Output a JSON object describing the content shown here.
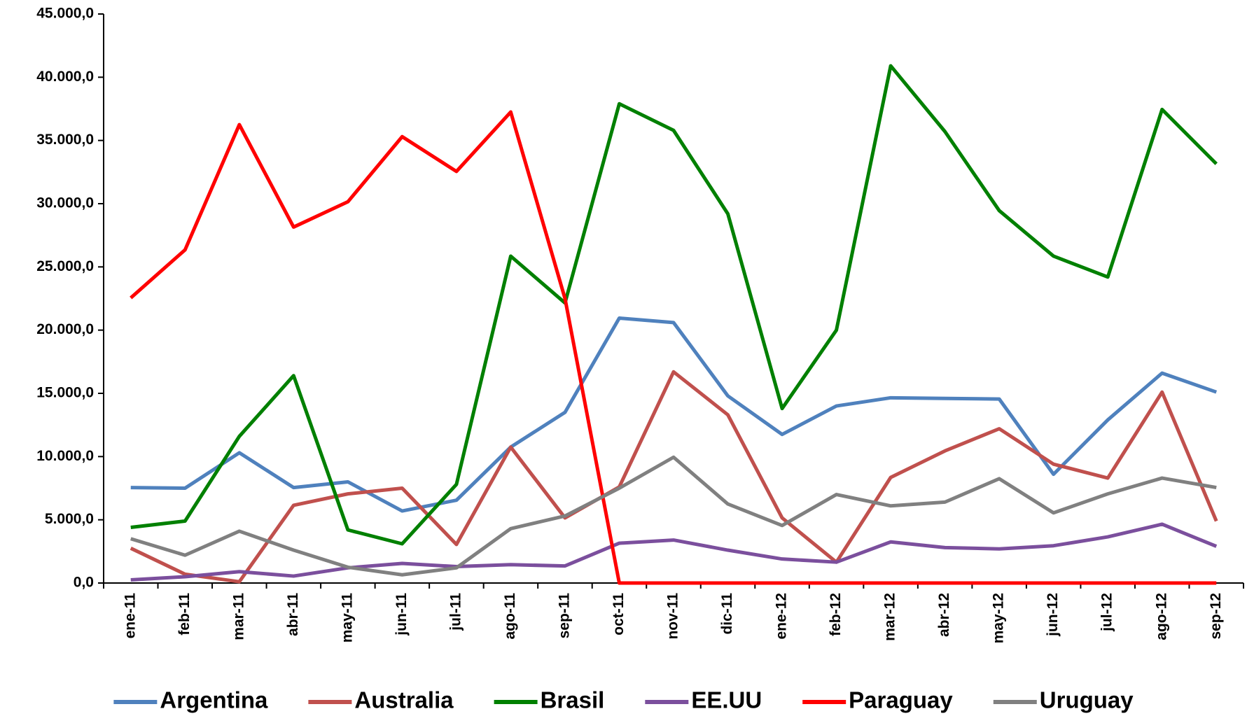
{
  "chart_data": {
    "type": "line",
    "categories": [
      "ene-11",
      "feb-11",
      "mar-11",
      "abr-11",
      "may-11",
      "jun-11",
      "jul-11",
      "ago-11",
      "sep-11",
      "oct-11",
      "nov-11",
      "dic-11",
      "ene-12",
      "feb-12",
      "mar-12",
      "abr-12",
      "may-12",
      "jun-12",
      "jul-12",
      "ago-12",
      "sep-12"
    ],
    "series": [
      {
        "name": "Argentina",
        "color": "#4f81bd",
        "values": [
          7550,
          7500,
          10300,
          7550,
          8000,
          5700,
          6550,
          10750,
          13500,
          20950,
          20600,
          14800,
          11750,
          14000,
          14650,
          14600,
          14550,
          8600,
          12900,
          16600,
          15100
        ]
      },
      {
        "name": "Australia",
        "color": "#c0504d",
        "values": [
          2750,
          700,
          100,
          6150,
          7050,
          7500,
          3050,
          10750,
          5150,
          7600,
          16700,
          13300,
          5150,
          1650,
          8350,
          10450,
          12200,
          9400,
          8300,
          15100,
          4900
        ]
      },
      {
        "name": "Brasil",
        "color": "#008000",
        "values": [
          4400,
          4900,
          11600,
          16400,
          4200,
          3100,
          7800,
          25850,
          22150,
          37900,
          35800,
          29200,
          13800,
          20000,
          40900,
          35700,
          29450,
          25850,
          24200,
          37450,
          33150
        ]
      },
      {
        "name": "EE.UU",
        "color": "#7b4f9d",
        "values": [
          250,
          500,
          900,
          550,
          1200,
          1550,
          1300,
          1450,
          1350,
          3150,
          3400,
          2600,
          1900,
          1650,
          3250,
          2800,
          2700,
          2950,
          3650,
          4650,
          2900
        ]
      },
      {
        "name": "Paraguay",
        "color": "#ff0000",
        "values": [
          22550,
          26350,
          36250,
          28150,
          30150,
          35300,
          32550,
          37250,
          22500,
          0,
          0,
          0,
          0,
          0,
          0,
          0,
          0,
          0,
          0,
          0,
          0
        ]
      },
      {
        "name": "Uruguay",
        "color": "#808080",
        "values": [
          3500,
          2200,
          4100,
          2600,
          1250,
          650,
          1200,
          4300,
          5300,
          7500,
          9950,
          6250,
          4550,
          7000,
          6100,
          6400,
          8250,
          5550,
          7050,
          8300,
          7550
        ]
      }
    ],
    "ylim": [
      0,
      45000
    ],
    "yticks": [
      {
        "value": 0,
        "label": "0,0"
      },
      {
        "value": 5000,
        "label": "5.000,0"
      },
      {
        "value": 10000,
        "label": "10.000,0"
      },
      {
        "value": 15000,
        "label": "15.000,0"
      },
      {
        "value": 20000,
        "label": "20.000,0"
      },
      {
        "value": 25000,
        "label": "25.000,0"
      },
      {
        "value": 30000,
        "label": "30.000,0"
      },
      {
        "value": 35000,
        "label": "35.000,0"
      },
      {
        "value": 40000,
        "label": "40.000,0"
      },
      {
        "value": 45000,
        "label": "45.000,0"
      }
    ],
    "legend": "bottom"
  }
}
